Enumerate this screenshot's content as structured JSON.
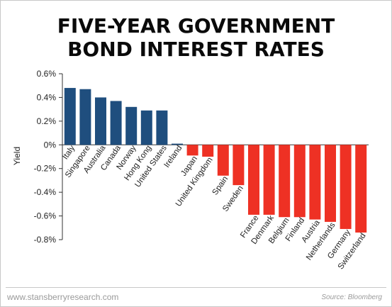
{
  "chart_data": {
    "type": "bar",
    "title": "FIVE-YEAR GOVERNMENT BOND INTEREST RATES",
    "title_lines": [
      "FIVE-YEAR GOVERNMENT",
      "BOND INTEREST RATES"
    ],
    "xlabel": "",
    "ylabel": "Yield",
    "ylim": [
      -0.8,
      0.6
    ],
    "yticks": [
      0.6,
      0.4,
      0.2,
      0,
      -0.2,
      -0.4,
      -0.6,
      -0.8
    ],
    "ytick_labels": [
      "0.6%",
      "0.4%",
      "0.2%",
      "0%",
      "-0.2%",
      "-0.4%",
      "-0.6%",
      "-0.8%"
    ],
    "grid": false,
    "categories": [
      "Italy",
      "Singapore",
      "Australia",
      "Canada",
      "Norway",
      "Hong Kong",
      "United States",
      "Ireland",
      "Japan",
      "United Kingdom",
      "Spain",
      "Sweden",
      "France",
      "Denmark",
      "Belgium",
      "Finland",
      "Austria",
      "Netherlands",
      "Germany",
      "Switzerland"
    ],
    "values": [
      0.48,
      0.47,
      0.4,
      0.37,
      0.32,
      0.29,
      0.29,
      0.01,
      -0.09,
      -0.1,
      -0.26,
      -0.34,
      -0.59,
      -0.59,
      -0.61,
      -0.61,
      -0.63,
      -0.65,
      -0.71,
      -0.74
    ],
    "colors": {
      "positive": "#1f4e7e",
      "negative": "#ee3124"
    }
  },
  "footer": {
    "website": "www.stansberryresearch.com",
    "source": "Source: Bloomberg"
  }
}
